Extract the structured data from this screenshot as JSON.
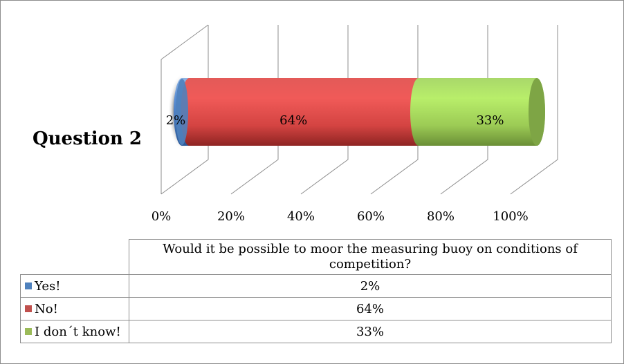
{
  "chart_data": {
    "type": "bar",
    "orientation": "horizontal",
    "stacked": true,
    "percent_stacked": true,
    "style": "3d-cylinder",
    "categories": [
      "Question 2"
    ],
    "series": [
      {
        "name": "Yes!",
        "values": [
          2
        ],
        "label": "2%",
        "color": "#4f81bd"
      },
      {
        "name": "No!",
        "values": [
          64
        ],
        "label": "64%",
        "color": "#c0504d"
      },
      {
        "name": "I don´t know!",
        "values": [
          33
        ],
        "label": "33%",
        "color": "#9bbb59"
      }
    ],
    "xlim": [
      0,
      100
    ],
    "x_ticks": [
      "0%",
      "20%",
      "40%",
      "60%",
      "80%",
      "100%"
    ],
    "grid": true,
    "legend": "data-table",
    "data_table": {
      "header": "Would it be possible to moor the measuring buoy on conditions of competition?",
      "rows": [
        {
          "label": "Yes!",
          "value": "2%"
        },
        {
          "label": "No!",
          "value": "64%"
        },
        {
          "label": "I don´t know!",
          "value": "33%"
        }
      ]
    }
  }
}
